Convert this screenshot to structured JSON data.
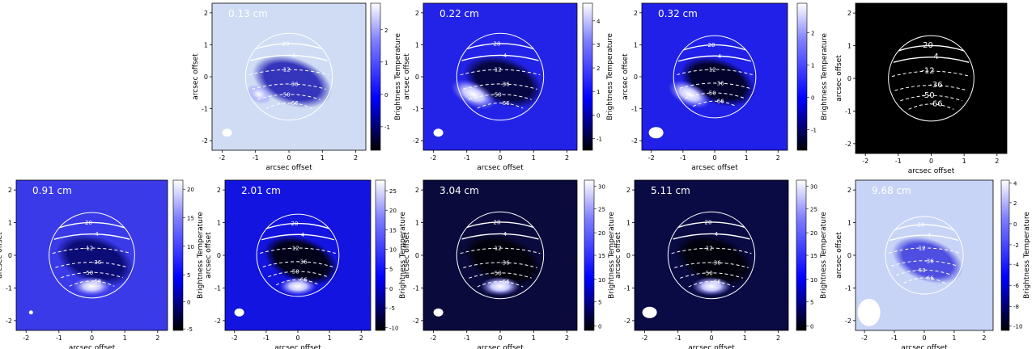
{
  "chart_data": {
    "type": "heatmap",
    "description_colorbar": "Brightness Temperature",
    "xlabel": "arcsec offset",
    "ylabel": "arcsec offset",
    "xlim": [
      -2.3,
      2.3
    ],
    "ylim": [
      -2.3,
      2.3
    ],
    "latitude_contours": [
      "20",
      "4",
      "-12",
      "-36",
      "-50",
      "-66"
    ],
    "panels": [
      {
        "label": "0.13 cm",
        "colorbar_title": "Brightness Temperature",
        "bg": "#cfdcf4",
        "disk_dark": "#2c2cb8",
        "bright_spot": "light",
        "beam_size": "small",
        "xticks": [
          "-2",
          "-1",
          "0",
          "1",
          "2"
        ],
        "yticks": [
          "2",
          "1",
          "0",
          "-1",
          "-2"
        ],
        "cbar_ticks": [
          {
            "label": "2",
            "frac": 0.82
          },
          {
            "label": "1",
            "frac": 0.6
          },
          {
            "label": "0",
            "frac": 0.38
          },
          {
            "label": "-1",
            "frac": 0.16
          }
        ],
        "has_colorbar": true,
        "contour_labels": [
          "20",
          "4",
          "-12",
          "-36",
          "-50",
          "-66"
        ]
      },
      {
        "label": "0.22 cm",
        "colorbar_title": "Brightness Temperature",
        "bg": "#2323e8",
        "disk_dark": "#05053a",
        "bright_spot": "left",
        "beam_size": "small",
        "xticks": [
          "-2",
          "-1",
          "0",
          "1",
          "2"
        ],
        "yticks": [
          "2",
          "1",
          "0",
          "-1",
          "-2"
        ],
        "cbar_ticks": [
          {
            "label": "4",
            "frac": 0.88
          },
          {
            "label": "3",
            "frac": 0.72
          },
          {
            "label": "2",
            "frac": 0.56
          },
          {
            "label": "1",
            "frac": 0.4
          },
          {
            "label": "0",
            "frac": 0.24
          },
          {
            "label": "-1",
            "frac": 0.08
          }
        ],
        "has_colorbar": true,
        "contour_labels": [
          "20",
          "4",
          "-12",
          "-36",
          "-50",
          "-66"
        ]
      },
      {
        "label": "0.32 cm",
        "colorbar_title": "Brightness Temperature",
        "bg": "#2020e8",
        "disk_dark": "#000022",
        "bright_spot": "left",
        "beam_size": "medium",
        "xticks": [
          "-2",
          "-1",
          "0",
          "1",
          "2"
        ],
        "yticks": [
          "2",
          "1",
          "0",
          "-1",
          "-2"
        ],
        "cbar_ticks": [
          {
            "label": "2",
            "frac": 0.8
          },
          {
            "label": "1",
            "frac": 0.58
          },
          {
            "label": "0",
            "frac": 0.36
          },
          {
            "label": "-1",
            "frac": 0.14
          }
        ],
        "has_colorbar": true,
        "contour_labels": [
          "20",
          "4",
          "-12",
          "-36",
          "-50",
          "-66"
        ]
      },
      {
        "label": "",
        "colorbar_title": "",
        "bg": "#000000",
        "disk_dark": "#000000",
        "bright_spot": "none",
        "beam_size": "none",
        "xticks": [
          "-2",
          "-1",
          "0",
          "1",
          "2"
        ],
        "yticks": [
          "2",
          "1",
          "0",
          "-1",
          "-2"
        ],
        "cbar_ticks": [],
        "has_colorbar": false,
        "contour_labels": [
          "20",
          "4",
          "-12",
          "-36",
          "-50",
          "-66"
        ]
      },
      {
        "label": "0.91 cm",
        "colorbar_title": "Brightness Temperature",
        "bg": "#3a3ae8",
        "disk_dark": "#0a0a70",
        "bright_spot": "bottom",
        "beam_size": "tiny",
        "xticks": [
          "-2",
          "-1",
          "0",
          "1",
          "2"
        ],
        "yticks": [
          "2",
          "1",
          "0",
          "-1",
          "-2"
        ],
        "cbar_ticks": [
          {
            "label": "20",
            "frac": 0.94
          },
          {
            "label": "15",
            "frac": 0.75
          },
          {
            "label": "10",
            "frac": 0.56
          },
          {
            "label": "5",
            "frac": 0.37
          },
          {
            "label": "0",
            "frac": 0.19
          },
          {
            "label": "-5",
            "frac": 0.01
          }
        ],
        "has_colorbar": true,
        "contour_labels": [
          "20",
          "4",
          "-12",
          "-36",
          "-50",
          "-66"
        ]
      },
      {
        "label": "2.01 cm",
        "colorbar_title": "Brightness Temperature",
        "bg": "#1414e0",
        "disk_dark": "#000010",
        "bright_spot": "bottom",
        "beam_size": "small",
        "xticks": [
          "-2",
          "-1",
          "0",
          "1",
          "2"
        ],
        "yticks": [
          "2",
          "1",
          "0",
          "-1",
          "-2"
        ],
        "cbar_ticks": [
          {
            "label": "25",
            "frac": 0.93
          },
          {
            "label": "20",
            "frac": 0.8
          },
          {
            "label": "15",
            "frac": 0.67
          },
          {
            "label": "10",
            "frac": 0.54
          },
          {
            "label": "5",
            "frac": 0.41
          },
          {
            "label": "0",
            "frac": 0.28
          },
          {
            "label": "-5",
            "frac": 0.15
          },
          {
            "label": "-10",
            "frac": 0.02
          }
        ],
        "has_colorbar": true,
        "contour_labels": [
          "20",
          "4",
          "-12",
          "-36",
          "-50",
          "-66"
        ]
      },
      {
        "label": "3.04 cm",
        "colorbar_title": "Brightness Temperature",
        "bg": "#0a0a3c",
        "disk_dark": "#000008",
        "bright_spot": "bottom",
        "beam_size": "small",
        "xticks": [
          "-2",
          "-1",
          "0",
          "1",
          "2"
        ],
        "yticks": [
          "2",
          "1",
          "0",
          "-1",
          "-2"
        ],
        "cbar_ticks": [
          {
            "label": "30",
            "frac": 0.96
          },
          {
            "label": "25",
            "frac": 0.81
          },
          {
            "label": "20",
            "frac": 0.65
          },
          {
            "label": "15",
            "frac": 0.5
          },
          {
            "label": "10",
            "frac": 0.34
          },
          {
            "label": "5",
            "frac": 0.19
          },
          {
            "label": "0",
            "frac": 0.03
          }
        ],
        "has_colorbar": true,
        "contour_labels": [
          "20",
          "4",
          "-12",
          "-36",
          "-50",
          "-66"
        ]
      },
      {
        "label": "5.11 cm",
        "colorbar_title": "Brightness Temperature",
        "bg": "#0a0a44",
        "disk_dark": "#000008",
        "bright_spot": "bottom",
        "beam_size": "medium",
        "xticks": [
          "-2",
          "-1",
          "0",
          "1",
          "2"
        ],
        "yticks": [
          "2",
          "1",
          "0",
          "-1",
          "-2"
        ],
        "cbar_ticks": [
          {
            "label": "30",
            "frac": 0.96
          },
          {
            "label": "25",
            "frac": 0.81
          },
          {
            "label": "20",
            "frac": 0.65
          },
          {
            "label": "15",
            "frac": 0.5
          },
          {
            "label": "10",
            "frac": 0.34
          },
          {
            "label": "5",
            "frac": 0.19
          },
          {
            "label": "0",
            "frac": 0.03
          }
        ],
        "has_colorbar": true,
        "contour_labels": [
          "20",
          "4",
          "-12",
          "-36",
          "-50",
          "-66"
        ]
      },
      {
        "label": "9.68 cm",
        "colorbar_title": "Brightness Temperature",
        "bg": "#c8d4f6",
        "disk_dark": "#4848e0",
        "bright_spot": "none",
        "beam_size": "large",
        "xticks": [
          "-2",
          "-1",
          "0",
          "1",
          "2"
        ],
        "yticks": [
          "2",
          "1",
          "0",
          "-1",
          "-2"
        ],
        "cbar_ticks": [
          {
            "label": "4",
            "frac": 0.98
          },
          {
            "label": "2",
            "frac": 0.85
          },
          {
            "label": "0",
            "frac": 0.71
          },
          {
            "label": "-2",
            "frac": 0.57
          },
          {
            "label": "-4",
            "frac": 0.44
          },
          {
            "label": "-6",
            "frac": 0.3
          },
          {
            "label": "-8",
            "frac": 0.16
          },
          {
            "label": "-10",
            "frac": 0.03
          }
        ],
        "has_colorbar": true,
        "contour_labels": [
          "20",
          "4",
          "-12",
          "-36",
          "-50",
          "-66"
        ]
      }
    ]
  }
}
